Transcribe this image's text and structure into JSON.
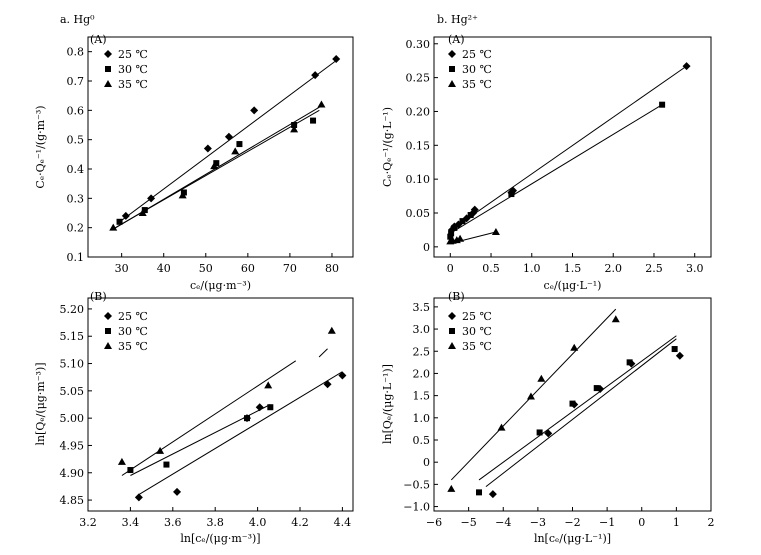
{
  "chart_data": [
    {
      "id": "a",
      "type": "scatter",
      "title": "a. Hg⁰",
      "subtitle": "(A)",
      "xlabel": "cₑ/(μg·m⁻³)",
      "ylabel": "Cₑ·Qₑ⁻¹/(g·m⁻³)",
      "xlim": [
        22,
        85
      ],
      "ylim": [
        0.1,
        0.85
      ],
      "xticks": [
        30,
        40,
        50,
        60,
        70,
        80
      ],
      "yticks": [
        0.1,
        0.2,
        0.3,
        0.4,
        0.5,
        0.6,
        0.7,
        0.8
      ],
      "legend_position": "top-left",
      "series": [
        {
          "name": "25 ℃",
          "marker": "diamond",
          "points": [
            [
              31,
              0.24
            ],
            [
              37,
              0.3
            ],
            [
              50.5,
              0.47
            ],
            [
              55.5,
              0.51
            ],
            [
              61.5,
              0.6
            ],
            [
              76,
              0.72
            ],
            [
              81,
              0.775
            ]
          ],
          "fit": [
            [
              30,
              0.225
            ],
            [
              81.5,
              0.775
            ]
          ]
        },
        {
          "name": "30 ℃",
          "marker": "square",
          "points": [
            [
              29.5,
              0.22
            ],
            [
              35.5,
              0.26
            ],
            [
              44.8,
              0.32
            ],
            [
              52.5,
              0.42
            ],
            [
              58,
              0.485
            ],
            [
              71,
              0.55
            ],
            [
              75.5,
              0.565
            ]
          ],
          "fit": [
            [
              28.5,
              0.2
            ],
            [
              77,
              0.6
            ]
          ]
        },
        {
          "name": "35 ℃",
          "marker": "triangle",
          "points": [
            [
              28,
              0.2
            ],
            [
              35,
              0.25
            ],
            [
              44.5,
              0.31
            ],
            [
              52,
              0.41
            ],
            [
              57,
              0.46
            ],
            [
              71,
              0.535
            ],
            [
              77.5,
              0.62
            ]
          ],
          "fit": [
            [
              28,
              0.195
            ],
            [
              77.5,
              0.615
            ]
          ]
        }
      ]
    },
    {
      "id": "b",
      "type": "scatter",
      "title": "b. Hg²⁺",
      "subtitle": "(A)",
      "xlabel": "cₑ/(μg·L⁻¹)",
      "ylabel": "Cₑ·Qₑ⁻¹/(g·L⁻¹)",
      "xlim": [
        -0.2,
        3.2
      ],
      "ylim": [
        -0.015,
        0.31
      ],
      "xticks": [
        0,
        0.5,
        1,
        1.5,
        2,
        2.5,
        3
      ],
      "yticks": [
        0,
        0.05,
        0.1,
        0.15,
        0.2,
        0.25,
        0.3
      ],
      "xtick_labels": [
        "0",
        "0.5",
        "1.0",
        "1.5",
        "2.0",
        "2.5",
        "3.0"
      ],
      "ytick_labels": [
        "0",
        "0.05",
        "0.10",
        "0.15",
        "0.20",
        "0.25",
        "0.30"
      ],
      "legend_position": "top-left",
      "series": [
        {
          "name": "25 ℃",
          "marker": "diamond",
          "points": [
            [
              0.02,
              0.025
            ],
            [
              0.05,
              0.03
            ],
            [
              0.1,
              0.033
            ],
            [
              0.2,
              0.042
            ],
            [
              0.28,
              0.05
            ],
            [
              0.3,
              0.055
            ],
            [
              0.75,
              0.08
            ],
            [
              0.77,
              0.083
            ],
            [
              2.9,
              0.267
            ]
          ],
          "fit": [
            [
              0,
              0.024
            ],
            [
              2.9,
              0.267
            ]
          ]
        },
        {
          "name": "30 ℃",
          "marker": "square",
          "points": [
            [
              0,
              0.015
            ],
            [
              0.01,
              0.02
            ],
            [
              0.05,
              0.028
            ],
            [
              0.15,
              0.038
            ],
            [
              0.25,
              0.047
            ],
            [
              0.75,
              0.078
            ],
            [
              2.6,
              0.21
            ]
          ],
          "fit": [
            [
              0,
              0.02
            ],
            [
              2.6,
              0.21
            ]
          ]
        },
        {
          "name": "35 ℃",
          "marker": "triangle",
          "points": [
            [
              0,
              0.008
            ],
            [
              0.03,
              0.009
            ],
            [
              0.08,
              0.01
            ],
            [
              0.12,
              0.012
            ],
            [
              0.56,
              0.022
            ]
          ],
          "fit": [
            [
              0,
              0.005
            ],
            [
              0.56,
              0.022
            ]
          ]
        }
      ]
    },
    {
      "id": "c",
      "type": "scatter",
      "subtitle": "(B)",
      "xlabel": "ln[cₑ/(μg·m⁻³)]",
      "ylabel": "ln[Qₑ/(μg·m⁻³)]",
      "xlim": [
        3.2,
        4.45
      ],
      "ylim": [
        4.83,
        5.22
      ],
      "xticks": [
        3.2,
        3.4,
        3.6,
        3.8,
        4.0,
        4.2,
        4.4
      ],
      "yticks": [
        4.85,
        4.9,
        4.95,
        5.0,
        5.05,
        5.1,
        5.15,
        5.2
      ],
      "xtick_labels": [
        "3.2",
        "3.4",
        "3.6",
        "3.8",
        "4.0",
        "4.2",
        "4.4"
      ],
      "ytick_labels": [
        "4.85",
        "4.90",
        "4.95",
        "5.00",
        "5.05",
        "5.10",
        "5.15",
        "5.20"
      ],
      "legend_position": "top-left",
      "series": [
        {
          "name": "25 ℃",
          "marker": "diamond",
          "points": [
            [
              3.44,
              4.855
            ],
            [
              3.62,
              4.865
            ],
            [
              3.95,
              5.0
            ],
            [
              4.01,
              5.02
            ],
            [
              4.33,
              5.062
            ],
            [
              4.4,
              5.078
            ]
          ],
          "fit": [
            [
              3.44,
              4.86
            ],
            [
              4.4,
              5.085
            ]
          ]
        },
        {
          "name": "30 ℃",
          "marker": "square",
          "points": [
            [
              3.4,
              4.905
            ],
            [
              3.57,
              4.915
            ],
            [
              3.95,
              5.0
            ],
            [
              4.06,
              5.02
            ]
          ],
          "fit": [
            [
              3.4,
              4.895
            ],
            [
              4.06,
              5.025
            ]
          ]
        },
        {
          "name": "35 ℃",
          "marker": "triangle",
          "points": [
            [
              3.36,
              4.92
            ],
            [
              3.54,
              4.94
            ],
            [
              4.05,
              5.06
            ],
            [
              4.35,
              5.16
            ]
          ],
          "fit": [
            [
              3.36,
              4.895
            ],
            [
              4.18,
              5.105
            ]
          ],
          "fit_extra": [
            [
              4.29,
              5.112
            ],
            [
              4.33,
              5.127
            ]
          ]
        }
      ]
    },
    {
      "id": "d",
      "type": "scatter",
      "subtitle": "(B)",
      "xlabel": "ln[cₑ/(μg·L⁻¹)]",
      "ylabel": "ln[Qₑ/(μg·L⁻¹)]",
      "xlim": [
        -6,
        2
      ],
      "ylim": [
        -1.1,
        3.7
      ],
      "xticks": [
        -6,
        -5,
        -4,
        -3,
        -2,
        -1,
        0,
        1,
        2
      ],
      "yticks": [
        -1.0,
        -0.5,
        0,
        0.5,
        1.0,
        1.5,
        2.0,
        2.5,
        3.0,
        3.5
      ],
      "xtick_labels": [
        "−6",
        "−5",
        "−4",
        "−3",
        "−2",
        "−1",
        "0",
        "1",
        "2"
      ],
      "ytick_labels": [
        "−1.0",
        "−0.5",
        "0",
        "0.5",
        "1.0",
        "1.5",
        "2.0",
        "2.5",
        "3.0",
        "3.5"
      ],
      "legend_position": "top-left",
      "series": [
        {
          "name": "25 ℃",
          "marker": "diamond",
          "points": [
            [
              -4.3,
              -0.72
            ],
            [
              -2.7,
              0.65
            ],
            [
              -1.95,
              1.3
            ],
            [
              -1.2,
              1.65
            ],
            [
              -0.3,
              2.22
            ],
            [
              1.1,
              2.4
            ]
          ],
          "fit": [
            [
              -4.5,
              -0.55
            ],
            [
              1.0,
              2.78
            ]
          ]
        },
        {
          "name": "30 ℃",
          "marker": "square",
          "points": [
            [
              -4.7,
              -0.68
            ],
            [
              -2.95,
              0.67
            ],
            [
              -2.0,
              1.32
            ],
            [
              -1.3,
              1.67
            ],
            [
              -0.35,
              2.25
            ],
            [
              0.95,
              2.55
            ]
          ],
          "fit": [
            [
              -4.7,
              -0.4
            ],
            [
              1.0,
              2.85
            ]
          ]
        },
        {
          "name": "35 ℃",
          "marker": "triangle",
          "points": [
            [
              -5.5,
              -0.6
            ],
            [
              -4.05,
              0.78
            ],
            [
              -3.2,
              1.48
            ],
            [
              -2.9,
              1.88
            ],
            [
              -1.95,
              2.58
            ],
            [
              -0.75,
              3.22
            ]
          ],
          "fit": [
            [
              -5.5,
              -0.4
            ],
            [
              -0.75,
              3.45
            ]
          ]
        }
      ]
    }
  ]
}
